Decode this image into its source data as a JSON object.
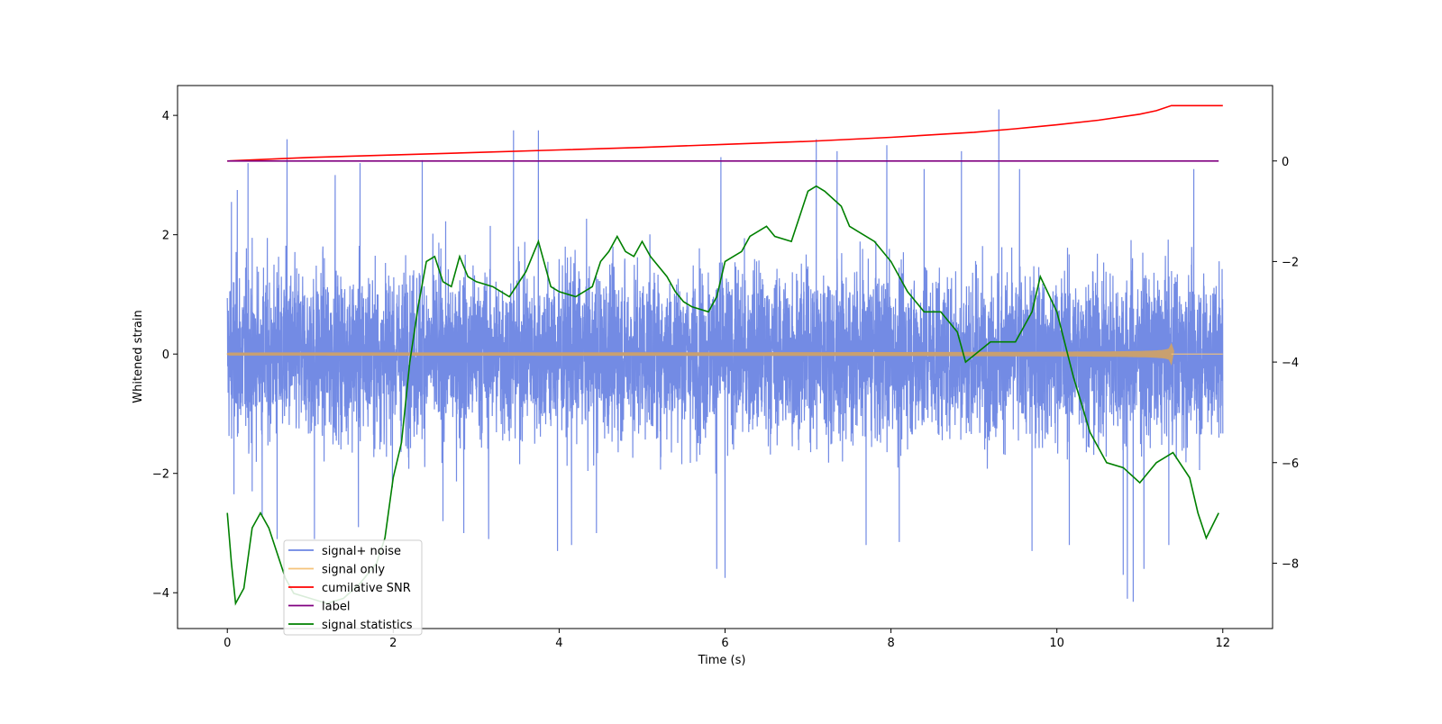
{
  "chart_data": {
    "type": "line",
    "title": "",
    "xlabel": "Time (s)",
    "ylabel": "Whitened strain",
    "y2label": "",
    "xlim": [
      -0.6,
      12.6
    ],
    "ylim": [
      -4.6,
      4.5
    ],
    "y2lim": [
      -9.3,
      1.5
    ],
    "x_ticks": [
      0,
      2,
      4,
      6,
      8,
      10,
      12
    ],
    "y_ticks": [
      -4,
      -2,
      0,
      2,
      4
    ],
    "y2_ticks": [
      -8,
      -6,
      -4,
      -2,
      0
    ],
    "legend_position": "lower-left",
    "grid": false,
    "series": [
      {
        "name": "signal+ noise",
        "color": "#6b85e3",
        "axis": "left",
        "kind": "noise",
        "t_start": 0,
        "t_end": 12,
        "envelope_sd": 0.95,
        "peaks": [
          [
            0.05,
            2.55
          ],
          [
            0.08,
            -2.35
          ],
          [
            0.12,
            2.75
          ],
          [
            0.25,
            3.2
          ],
          [
            0.3,
            -2.3
          ],
          [
            0.42,
            -2.7
          ],
          [
            0.72,
            3.6
          ],
          [
            0.6,
            -3.1
          ],
          [
            1.05,
            -3.1
          ],
          [
            1.3,
            3.0
          ],
          [
            1.6,
            3.2
          ],
          [
            1.58,
            -2.9
          ],
          [
            2.35,
            3.25
          ],
          [
            2.6,
            -2.8
          ],
          [
            2.85,
            -3.0
          ],
          [
            3.45,
            3.75
          ],
          [
            3.15,
            -3.1
          ],
          [
            3.75,
            3.75
          ],
          [
            3.98,
            -3.3
          ],
          [
            4.15,
            -3.2
          ],
          [
            4.45,
            -3.0
          ],
          [
            5.9,
            -3.6
          ],
          [
            5.95,
            3.3
          ],
          [
            6.0,
            -3.75
          ],
          [
            7.1,
            3.6
          ],
          [
            7.35,
            3.4
          ],
          [
            7.7,
            -3.2
          ],
          [
            7.95,
            3.5
          ],
          [
            8.1,
            -3.15
          ],
          [
            8.4,
            3.1
          ],
          [
            8.85,
            3.4
          ],
          [
            9.3,
            4.1
          ],
          [
            9.55,
            3.1
          ],
          [
            9.7,
            -3.3
          ],
          [
            10.15,
            -3.2
          ],
          [
            10.8,
            -3.7
          ],
          [
            10.85,
            -4.1
          ],
          [
            10.92,
            -4.15
          ],
          [
            11.05,
            -3.6
          ],
          [
            11.35,
            -3.2
          ],
          [
            11.65,
            3.1
          ]
        ]
      },
      {
        "name": "signal only",
        "color": "#f5c37a",
        "axis": "left",
        "kind": "chirp",
        "t_start": 0,
        "t_merge": 11.38,
        "t_end": 12,
        "amp_start": 0.02,
        "amp_peak": 0.47
      },
      {
        "name": "cumilative SNR",
        "color": "#ff0000",
        "axis": "right",
        "x": [
          0,
          1,
          2,
          3,
          4,
          5,
          6,
          7,
          8,
          9,
          9.5,
          10,
          10.5,
          11,
          11.2,
          11.38,
          11.5,
          12
        ],
        "y": [
          0.0,
          0.07,
          0.12,
          0.17,
          0.22,
          0.27,
          0.33,
          0.39,
          0.47,
          0.57,
          0.64,
          0.72,
          0.81,
          0.93,
          1.0,
          1.1,
          1.1,
          1.1
        ]
      },
      {
        "name": "label",
        "color": "#800080",
        "axis": "right",
        "x": [
          0,
          11.95
        ],
        "y": [
          0,
          0
        ]
      },
      {
        "name": "signal statistics",
        "color": "#008000",
        "axis": "right",
        "x": [
          0,
          0.05,
          0.1,
          0.2,
          0.3,
          0.4,
          0.5,
          0.6,
          0.7,
          0.8,
          1.0,
          1.2,
          1.4,
          1.6,
          1.8,
          1.9,
          2.0,
          2.1,
          2.2,
          2.3,
          2.4,
          2.5,
          2.6,
          2.7,
          2.8,
          2.9,
          3.0,
          3.2,
          3.4,
          3.6,
          3.75,
          3.9,
          4.0,
          4.2,
          4.4,
          4.5,
          4.6,
          4.7,
          4.8,
          4.9,
          5.0,
          5.1,
          5.3,
          5.4,
          5.5,
          5.6,
          5.8,
          5.9,
          6.0,
          6.1,
          6.2,
          6.3,
          6.5,
          6.6,
          6.8,
          7.0,
          7.1,
          7.2,
          7.4,
          7.5,
          7.6,
          7.8,
          8.0,
          8.2,
          8.4,
          8.6,
          8.8,
          8.9,
          9.2,
          9.5,
          9.7,
          9.8,
          10.0,
          10.2,
          10.4,
          10.6,
          10.8,
          11.0,
          11.2,
          11.4,
          11.6,
          11.7,
          11.8,
          11.95
        ],
        "y": [
          -7.0,
          -8.0,
          -8.8,
          -8.5,
          -7.3,
          -7.0,
          -7.3,
          -7.8,
          -8.3,
          -8.6,
          -8.7,
          -8.8,
          -8.7,
          -8.4,
          -8.0,
          -7.5,
          -6.3,
          -5.6,
          -4.0,
          -2.9,
          -2.0,
          -1.9,
          -2.4,
          -2.5,
          -1.9,
          -2.3,
          -2.4,
          -2.5,
          -2.7,
          -2.2,
          -1.6,
          -2.5,
          -2.6,
          -2.7,
          -2.5,
          -2.0,
          -1.8,
          -1.5,
          -1.8,
          -1.9,
          -1.6,
          -1.9,
          -2.3,
          -2.6,
          -2.8,
          -2.9,
          -3.0,
          -2.7,
          -2.0,
          -1.9,
          -1.8,
          -1.5,
          -1.3,
          -1.5,
          -1.6,
          -0.6,
          -0.5,
          -0.6,
          -0.9,
          -1.3,
          -1.4,
          -1.6,
          -2.0,
          -2.6,
          -3.0,
          -3.0,
          -3.4,
          -4.0,
          -3.6,
          -3.6,
          -3.0,
          -2.3,
          -3.0,
          -4.3,
          -5.4,
          -6.0,
          -6.1,
          -6.4,
          -6.0,
          -5.8,
          -6.3,
          -7.0,
          -7.5,
          -7.0
        ]
      }
    ]
  }
}
